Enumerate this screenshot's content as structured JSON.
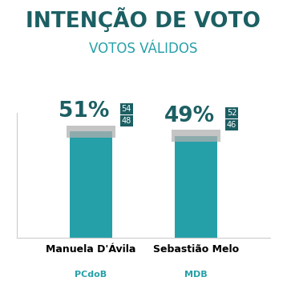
{
  "chart_data": {
    "type": "bar",
    "title": "INTENÇÃO DE VOTO",
    "subtitle": "VOTOS VÁLIDOS",
    "categories": [
      "Manuela D'Ávila",
      "Sebastião Melo"
    ],
    "parties": [
      "PCdoB",
      "MDB"
    ],
    "values": [
      51,
      49
    ],
    "value_labels": [
      "51%",
      "49%"
    ],
    "lower": [
      48,
      46
    ],
    "upper": [
      54,
      52
    ],
    "color": "#26a0a8",
    "ylim": [
      0,
      60
    ],
    "data_labels": true,
    "tick_labels": "x",
    "grid": false
  }
}
